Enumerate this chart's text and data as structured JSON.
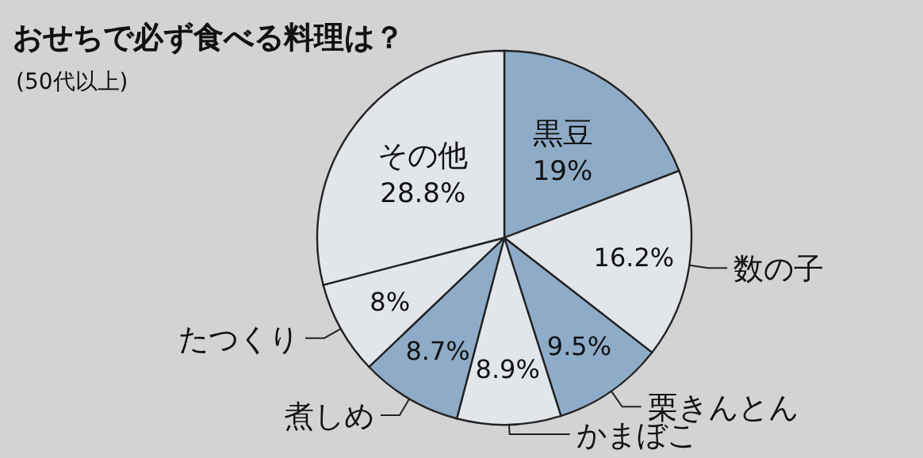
{
  "chart_data": {
    "type": "pie",
    "title": "おせちで必ず食べる料理は？",
    "subtitle": "(50代以上)",
    "categories": [
      "黒豆",
      "数の子",
      "栗きんとん",
      "かまぼこ",
      "煮しめ",
      "たつくり",
      "その他"
    ],
    "values": [
      19,
      16.2,
      9.5,
      8.9,
      8.7,
      8,
      28.8
    ],
    "value_labels": [
      "19%",
      "16.2%",
      "9.5%",
      "8.9%",
      "8.7%",
      "8%",
      "28.8%"
    ],
    "colors": [
      "#8eacc8",
      "#e2e5ea",
      "#8eacc8",
      "#e2e5ea",
      "#8eacc8",
      "#e2e5ea",
      "#e2e5ea"
    ]
  }
}
